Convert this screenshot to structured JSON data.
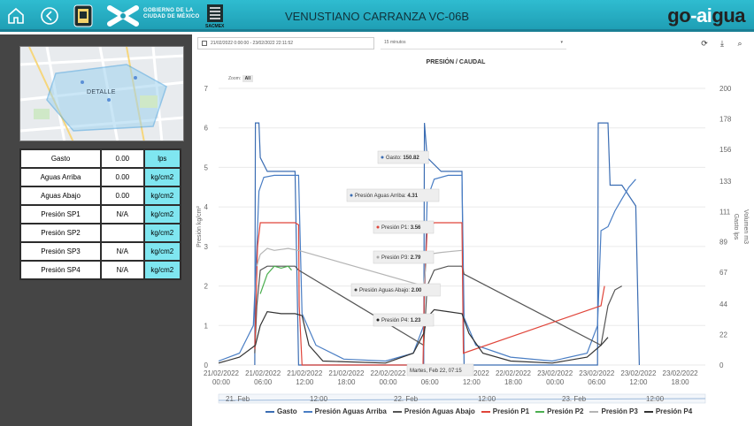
{
  "header": {
    "title": "VENUSTIANO CARRANZA VC-06B",
    "gob_line1": "GOBIERNO DE LA",
    "gob_line2": "CIUDAD DE MÉXICO",
    "sacmex": "SACMEX",
    "brand_go": "go",
    "brand_dash": "-",
    "brand_ai": "ai",
    "brand_gua": "gua",
    "icons": [
      "home-icon",
      "back-icon",
      "cdmx-shield-icon",
      "cdmx-logo-icon",
      "sacmex-logo-icon"
    ]
  },
  "map": {
    "label": "DETALLE"
  },
  "readings": [
    {
      "name": "Gasto",
      "value": "0.00",
      "unit": "lps"
    },
    {
      "name": "Aguas Arriba",
      "value": "0.00",
      "unit": "kg/cm2"
    },
    {
      "name": "Aguas Abajo",
      "value": "0.00",
      "unit": "kg/cm2"
    },
    {
      "name": "Presión SP1",
      "value": "N/A",
      "unit": "kg/cm2"
    },
    {
      "name": "Presión SP2",
      "value": "",
      "unit": "kg/cm2"
    },
    {
      "name": "Presión SP3",
      "value": "N/A",
      "unit": "kg/cm2"
    },
    {
      "name": "Presión SP4",
      "value": "N/A",
      "unit": "kg/cm2"
    }
  ],
  "toolbar": {
    "date_range": "21/02/2022 0:00:00 - 23/02/2022 22:11:52",
    "interval": "15 minutos",
    "buttons": [
      "refresh-icon",
      "download-icon",
      "search-icon"
    ]
  },
  "zoom": {
    "label": "Zoom",
    "all": "All"
  },
  "navigator_labels": [
    "21. Feb",
    "12:00",
    "22. Feb",
    "12:00",
    "23. Feb",
    "12:00"
  ],
  "tooltip_header": "Martes, Feb 22, 07:15",
  "tooltips": [
    {
      "label": "Gasto:",
      "value": "150.82",
      "color": "#3b6db3"
    },
    {
      "label": "Presión Aguas Arriba:",
      "value": "4.31",
      "color": "#3b6db3"
    },
    {
      "label": "Presión P1:",
      "value": "3.56",
      "color": "#e0453a"
    },
    {
      "label": "Presión P3:",
      "value": "2.79",
      "color": "#aaaaaa"
    },
    {
      "label": "Presión Aguas Abajo:",
      "value": "2.00",
      "color": "#444444"
    },
    {
      "label": "Presión P4:",
      "value": "1.23",
      "color": "#222222"
    }
  ],
  "chart_data": {
    "type": "line",
    "title": "PRESIÓN / CAUDAL",
    "ylabel_left": "Presión kg/cm²",
    "ylabel_right": "Gasto lps",
    "ylabel_right2": "Volumen m3",
    "ylim_left": [
      0,
      7
    ],
    "ylim_right": [
      0,
      200
    ],
    "yticks_left": [
      "0",
      "1",
      "2",
      "3",
      "4",
      "5",
      "6",
      "7"
    ],
    "yticks_right": [
      "0",
      "22",
      "44",
      "67",
      "89",
      "111",
      "133",
      "156",
      "178",
      "200"
    ],
    "xtick_labels": [
      [
        "21/02/2022",
        "00:00"
      ],
      [
        "21/02/2022",
        "06:00"
      ],
      [
        "21/02/2022",
        "12:00"
      ],
      [
        "21/02/2022",
        "18:00"
      ],
      [
        "22/02/2022",
        "00:00"
      ],
      [
        "22/02/2022",
        "06:00"
      ],
      [
        "22/02/2022",
        "12:00"
      ],
      [
        "22/02/2022",
        "18:00"
      ],
      [
        "23/02/2022",
        "00:00"
      ],
      [
        "23/02/2022",
        "06:00"
      ],
      [
        "23/02/2022",
        "12:00"
      ],
      [
        "23/02/2022",
        "18:00"
      ]
    ],
    "x_hours": [
      0,
      6,
      12,
      18,
      24,
      30,
      36,
      42,
      48,
      54,
      60,
      66
    ],
    "legend": [
      "Gasto",
      "Presión Aguas Arriba",
      "Presión Aguas Abajo",
      "Presión P1",
      "Presión P2",
      "Presión P3",
      "Presión P4"
    ],
    "series": [
      {
        "name": "Gasto",
        "axis": "right",
        "color": "#3b6db3",
        "points": [
          [
            5.2,
            0
          ],
          [
            5.3,
            175
          ],
          [
            5.8,
            175
          ],
          [
            6,
            150
          ],
          [
            7,
            140
          ],
          [
            9,
            140
          ],
          [
            11,
            140
          ],
          [
            11.5,
            0
          ],
          [
            29.5,
            0
          ],
          [
            29.6,
            175
          ],
          [
            30,
            150
          ],
          [
            32,
            140
          ],
          [
            35,
            140
          ],
          [
            35.3,
            0
          ],
          [
            54.5,
            0
          ],
          [
            54.6,
            175
          ],
          [
            56,
            175
          ],
          [
            56.3,
            130
          ],
          [
            58,
            130
          ],
          [
            60,
            115
          ],
          [
            60.5,
            0
          ]
        ]
      },
      {
        "name": "Presión Aguas Arriba",
        "axis": "left",
        "color": "#4a7ec4",
        "points": [
          [
            0,
            0.1
          ],
          [
            3,
            0.3
          ],
          [
            5,
            1.0
          ],
          [
            5.5,
            3.0
          ],
          [
            5.8,
            4.4
          ],
          [
            6.5,
            4.75
          ],
          [
            8,
            4.8
          ],
          [
            10,
            4.8
          ],
          [
            11.5,
            4.8
          ],
          [
            12,
            1.3
          ],
          [
            14,
            0.5
          ],
          [
            18,
            0.15
          ],
          [
            24,
            0.1
          ],
          [
            28,
            0.3
          ],
          [
            29.5,
            1.0
          ],
          [
            30,
            4.2
          ],
          [
            31,
            4.7
          ],
          [
            33,
            4.8
          ],
          [
            35,
            4.8
          ],
          [
            35.3,
            1.2
          ],
          [
            37,
            0.5
          ],
          [
            42,
            0.2
          ],
          [
            48,
            0.1
          ],
          [
            53,
            0.3
          ],
          [
            54.5,
            1.0
          ],
          [
            55,
            3.4
          ],
          [
            56,
            3.5
          ],
          [
            57,
            3.9
          ],
          [
            58,
            4.2
          ],
          [
            59,
            4.5
          ],
          [
            60,
            4.7
          ]
        ]
      },
      {
        "name": "Presión Aguas Abajo",
        "axis": "left",
        "color": "#555555",
        "points": [
          [
            5.2,
            0.3
          ],
          [
            5.5,
            1.5
          ],
          [
            6,
            2.4
          ],
          [
            7,
            2.5
          ],
          [
            9,
            2.5
          ],
          [
            11,
            2.5
          ],
          [
            11.5,
            2.4
          ],
          [
            29.5,
            0.5
          ],
          [
            30,
            2.0
          ],
          [
            31,
            2.4
          ],
          [
            33,
            2.5
          ],
          [
            35,
            2.5
          ],
          [
            35.3,
            2.3
          ],
          [
            55,
            0.5
          ],
          [
            56,
            1.5
          ],
          [
            57,
            1.9
          ],
          [
            58,
            2.0
          ]
        ]
      },
      {
        "name": "Presión P1",
        "axis": "left",
        "color": "#e0453a",
        "points": [
          [
            5.2,
            0.4
          ],
          [
            5.6,
            3.0
          ],
          [
            6,
            3.6
          ],
          [
            8,
            3.6
          ],
          [
            11,
            3.6
          ],
          [
            11.5,
            3.55
          ],
          [
            11.6,
            1.5
          ],
          [
            12,
            0
          ],
          [
            29.4,
            0
          ],
          [
            29.6,
            2.0
          ],
          [
            30,
            3.4
          ],
          [
            31,
            3.6
          ],
          [
            35,
            3.6
          ],
          [
            35.2,
            0.3
          ],
          [
            55,
            1.5
          ],
          [
            55.5,
            2.0
          ]
        ]
      },
      {
        "name": "Presión P2",
        "axis": "left",
        "color": "#4caf50",
        "points": [
          [
            6,
            1.8
          ],
          [
            7,
            2.3
          ],
          [
            8,
            2.5
          ],
          [
            9,
            2.45
          ],
          [
            10,
            2.5
          ],
          [
            10.5,
            2.4
          ]
        ]
      },
      {
        "name": "Presión P3",
        "axis": "left",
        "color": "#b5b5b5",
        "points": [
          [
            5.5,
            2.5
          ],
          [
            6,
            2.8
          ],
          [
            7,
            2.95
          ],
          [
            8,
            2.9
          ],
          [
            10,
            2.95
          ],
          [
            11.5,
            2.9
          ],
          [
            29.5,
            2.0
          ],
          [
            30,
            2.8
          ],
          [
            32,
            2.85
          ],
          [
            35,
            2.9
          ]
        ]
      },
      {
        "name": "Presión P4",
        "axis": "left",
        "color": "#333333",
        "points": [
          [
            0,
            0.05
          ],
          [
            3,
            0.2
          ],
          [
            5.3,
            0.5
          ],
          [
            6,
            1.0
          ],
          [
            7,
            1.35
          ],
          [
            9,
            1.3
          ],
          [
            11,
            1.3
          ],
          [
            12,
            1.25
          ],
          [
            13,
            0.5
          ],
          [
            15,
            0.1
          ],
          [
            24,
            0.05
          ],
          [
            28,
            0.3
          ],
          [
            29.5,
            0.8
          ],
          [
            30,
            1.2
          ],
          [
            31,
            1.4
          ],
          [
            33,
            1.35
          ],
          [
            35,
            1.3
          ],
          [
            36,
            0.8
          ],
          [
            38,
            0.3
          ],
          [
            42,
            0.1
          ],
          [
            48,
            0.05
          ],
          [
            53,
            0.2
          ],
          [
            55,
            0.5
          ],
          [
            56,
            0.7
          ]
        ]
      }
    ]
  }
}
